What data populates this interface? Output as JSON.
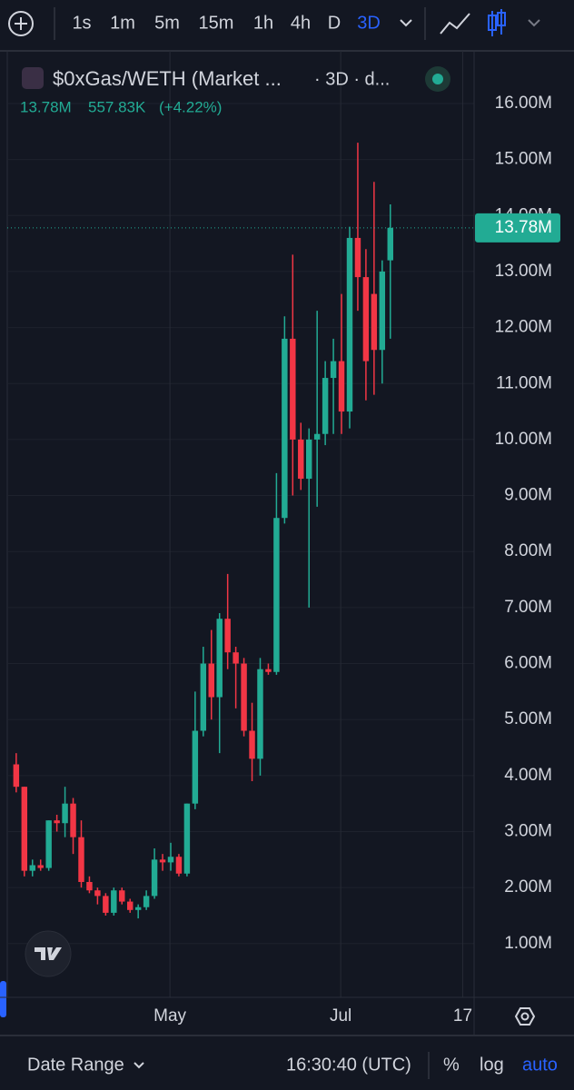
{
  "toolbar": {
    "intervals": [
      "1s",
      "1m",
      "5m",
      "15m",
      "1h",
      "4h",
      "D",
      "3D"
    ],
    "active_interval": "3D"
  },
  "legend": {
    "symbol": "$0xGas/WETH (Market ...",
    "interval": "· 3D · d...",
    "price": "13.78M",
    "change": "557.83K",
    "change_pct": "(+4.22%)"
  },
  "chart_data": {
    "type": "candlestick",
    "open": [
      4.2,
      3.8,
      2.3,
      2.4,
      2.35,
      3.2,
      3.15,
      3.5,
      2.9,
      2.1,
      1.95,
      1.85,
      1.55,
      1.95,
      1.75,
      1.6,
      1.65,
      1.85,
      2.5,
      2.45,
      2.55,
      2.25,
      3.5,
      4.8,
      6.0,
      5.4,
      6.8,
      6.2,
      6.0,
      4.8,
      4.3,
      5.9,
      5.85,
      8.6,
      11.8,
      10.0,
      9.3,
      10.0,
      10.1,
      11.1,
      11.4,
      10.5,
      13.6,
      12.9,
      12.6,
      11.6,
      13.2
    ],
    "high": [
      4.4,
      3.8,
      2.5,
      2.5,
      3.2,
      3.3,
      3.8,
      3.6,
      3.2,
      2.2,
      2.0,
      1.9,
      2.0,
      2.0,
      1.8,
      1.7,
      1.95,
      2.7,
      2.6,
      2.8,
      2.6,
      3.5,
      5.5,
      6.3,
      6.6,
      6.9,
      7.6,
      6.3,
      6.1,
      5.3,
      6.1,
      6.0,
      9.4,
      12.2,
      13.3,
      10.3,
      10.2,
      12.3,
      11.4,
      11.8,
      12.6,
      13.8,
      15.3,
      13.4,
      14.6,
      13.2,
      14.2
    ],
    "low": [
      3.7,
      2.2,
      2.2,
      2.3,
      2.3,
      3.0,
      2.9,
      2.6,
      2.0,
      1.9,
      1.7,
      1.5,
      1.5,
      1.7,
      1.55,
      1.45,
      1.6,
      1.8,
      2.3,
      2.3,
      2.2,
      2.2,
      3.4,
      4.7,
      5.0,
      4.4,
      5.9,
      5.2,
      4.7,
      3.9,
      4.0,
      5.8,
      5.8,
      8.5,
      9.0,
      9.1,
      7.0,
      8.8,
      9.9,
      10.1,
      10.1,
      10.2,
      12.3,
      10.7,
      10.8,
      11.0,
      11.8
    ],
    "close": [
      3.8,
      2.3,
      2.4,
      2.35,
      3.2,
      3.15,
      3.5,
      2.9,
      2.1,
      1.95,
      1.85,
      1.55,
      1.95,
      1.75,
      1.6,
      1.65,
      1.85,
      2.5,
      2.45,
      2.55,
      2.25,
      3.5,
      4.8,
      6.0,
      5.4,
      6.8,
      6.2,
      6.0,
      4.8,
      4.3,
      5.9,
      5.85,
      8.6,
      11.8,
      10.0,
      9.3,
      10.0,
      10.1,
      11.1,
      11.4,
      10.5,
      13.6,
      12.9,
      11.4,
      11.6,
      13.0,
      13.78
    ],
    "up_color": "#22ab94",
    "down_color": "#f23645",
    "xlim": [
      -1.1,
      56.3
    ],
    "xticks": [
      {
        "value": 18.9,
        "label": "May"
      },
      {
        "value": 39.9,
        "label": "Jul"
      },
      {
        "value": 54.9,
        "label": "17"
      }
    ],
    "ylim": [
      0.04,
      16.94
    ],
    "yticks": [
      {
        "value": 1,
        "label": "1.00M"
      },
      {
        "value": 2,
        "label": "2.00M"
      },
      {
        "value": 3,
        "label": "3.00M"
      },
      {
        "value": 4,
        "label": "4.00M"
      },
      {
        "value": 5,
        "label": "5.00M"
      },
      {
        "value": 6,
        "label": "6.00M"
      },
      {
        "value": 7,
        "label": "7.00M"
      },
      {
        "value": 8,
        "label": "8.00M"
      },
      {
        "value": 9,
        "label": "9.00M"
      },
      {
        "value": 10,
        "label": "10.00M"
      },
      {
        "value": 11,
        "label": "11.00M"
      },
      {
        "value": 12,
        "label": "12.00M"
      },
      {
        "value": 13,
        "label": "13.00M"
      },
      {
        "value": 14,
        "label": "14.00M"
      },
      {
        "value": 15,
        "label": "15.00M"
      },
      {
        "value": 16,
        "label": "16.00M"
      }
    ],
    "last_price": {
      "value": 13.78,
      "label": "13.78M"
    },
    "grid": true,
    "log_scale": false
  },
  "footer": {
    "date_range": "Date Range",
    "time": "16:30:40 (UTC)",
    "percent": "%",
    "log": "log",
    "auto": "auto"
  }
}
